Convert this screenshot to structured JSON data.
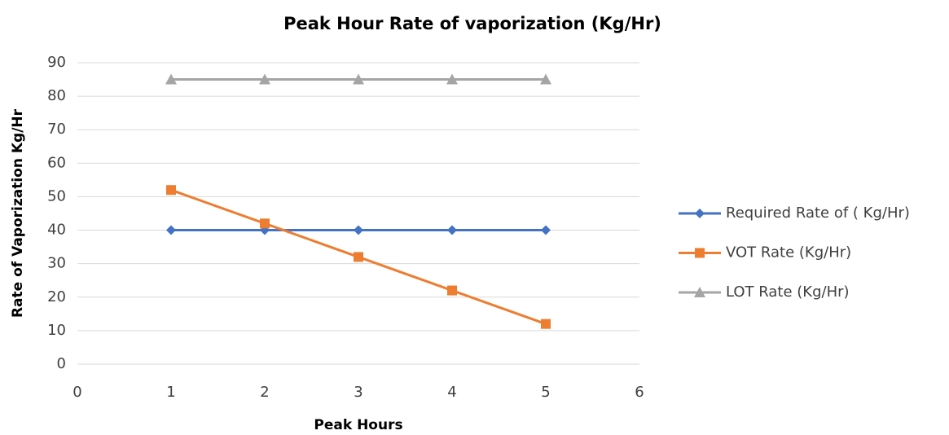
{
  "chart_data": {
    "type": "line",
    "title": "Peak Hour Rate of vaporization (Kg/Hr)",
    "xlabel": "Peak Hours",
    "ylabel": "Rate of Vaporization Kg/Hr",
    "x": [
      1,
      2,
      3,
      4,
      5
    ],
    "series": [
      {
        "name": "Required Rate of ( Kg/Hr)",
        "color": "#4472c4",
        "marker": "diamond",
        "values": [
          40,
          40,
          40,
          40,
          40
        ]
      },
      {
        "name": "VOT Rate (Kg/Hr)",
        "color": "#ed7d31",
        "marker": "square",
        "values": [
          52,
          42,
          32,
          22,
          12
        ]
      },
      {
        "name": "LOT Rate (Kg/Hr)",
        "color": "#a5a5a5",
        "marker": "triangle",
        "values": [
          85,
          85,
          85,
          85,
          85
        ]
      }
    ],
    "xlim": [
      0,
      6
    ],
    "xticks": [
      0,
      1,
      2,
      3,
      4,
      5,
      6
    ],
    "ylim": [
      0,
      90
    ],
    "yticks": [
      0,
      10,
      20,
      30,
      40,
      50,
      60,
      70,
      80,
      90
    ],
    "grid": true,
    "legend": "right"
  }
}
